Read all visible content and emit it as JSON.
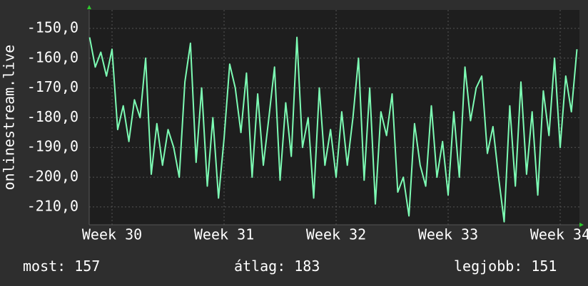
{
  "chart_data": {
    "type": "line",
    "y_label": "onlinestream.live",
    "x": [
      29.8,
      29.85,
      29.9,
      29.95,
      30.0,
      30.05,
      30.1,
      30.15,
      30.2,
      30.25,
      30.3,
      30.35,
      30.4,
      30.45,
      30.5,
      30.55,
      30.6,
      30.65,
      30.7,
      30.75,
      30.8,
      30.85,
      30.9,
      30.95,
      31.0,
      31.05,
      31.1,
      31.15,
      31.2,
      31.25,
      31.3,
      31.35,
      31.4,
      31.45,
      31.5,
      31.55,
      31.6,
      31.65,
      31.7,
      31.75,
      31.8,
      31.85,
      31.9,
      31.95,
      32.0,
      32.05,
      32.1,
      32.15,
      32.2,
      32.25,
      32.3,
      32.35,
      32.4,
      32.45,
      32.5,
      32.55,
      32.6,
      32.65,
      32.7,
      32.75,
      32.8,
      32.85,
      32.9,
      32.95,
      33.0,
      33.05,
      33.1,
      33.15,
      33.2,
      33.25,
      33.3,
      33.35,
      33.4,
      33.45,
      33.5,
      33.55,
      33.6,
      33.65,
      33.7,
      33.75,
      33.8,
      33.85,
      33.9,
      33.95,
      34.0,
      34.05,
      34.1,
      34.15
    ],
    "series": [
      {
        "color": "#7dfcb4",
        "values": [
          -153,
          -163,
          -158,
          -166,
          -157,
          -184,
          -176,
          -188,
          -174,
          -180,
          -160,
          -199,
          -182,
          -196,
          -184,
          -190,
          -200,
          -168,
          -155,
          -195,
          -170,
          -203,
          -180,
          -207,
          -187,
          -162,
          -170,
          -185,
          -165,
          -200,
          -172,
          -196,
          -180,
          -163,
          -201,
          -175,
          -193,
          -153,
          -190,
          -180,
          -207,
          -170,
          -196,
          -184,
          -200,
          -178,
          -196,
          -180,
          -160,
          -201,
          -170,
          -209,
          -178,
          -186,
          -172,
          -205,
          -200,
          -213,
          -182,
          -196,
          -203,
          -176,
          -200,
          -188,
          -206,
          -178,
          -200,
          -163,
          -181,
          -170,
          -166,
          -192,
          -183,
          -200,
          -215,
          -176,
          -203,
          -168,
          -199,
          -178,
          -206,
          -171,
          -186,
          -160,
          -190,
          -166,
          -178,
          -157
        ]
      }
    ],
    "xlim": [
      29.796,
      34.172
    ],
    "xticks": [
      {
        "value": 30,
        "label": "Week 30"
      },
      {
        "value": 31,
        "label": "Week 31"
      },
      {
        "value": 32,
        "label": "Week 32"
      },
      {
        "value": 33,
        "label": "Week 33"
      },
      {
        "value": 34,
        "label": "Week 34"
      }
    ],
    "ylim": [
      -216,
      -143.8
    ],
    "yticks": [
      {
        "value": -150,
        "label": "-150,0"
      },
      {
        "value": -160,
        "label": "-160,0"
      },
      {
        "value": -170,
        "label": "-170,0"
      },
      {
        "value": -180,
        "label": "-180,0"
      },
      {
        "value": -190,
        "label": "-190,0"
      },
      {
        "value": -200,
        "label": "-200,0"
      },
      {
        "value": -210,
        "label": "-210,0"
      }
    ],
    "grid": true,
    "stats": [
      {
        "label": "most:",
        "value": 157
      },
      {
        "label": "átlag:",
        "value": 183
      },
      {
        "label": "legjobb:",
        "value": 151
      }
    ]
  }
}
